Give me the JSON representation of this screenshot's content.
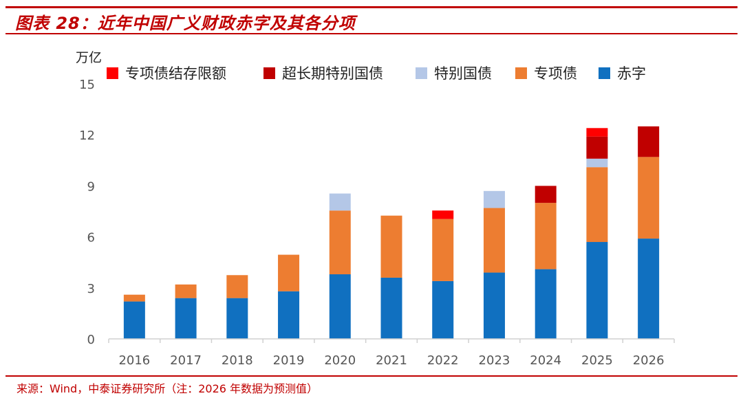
{
  "header": {
    "title": "图表 28：近年中国广义财政赤字及其各分项"
  },
  "footer": {
    "source": "来源：Wind，中泰证券研究所（注：2026 年数据为预测值）"
  },
  "chart_data": {
    "type": "bar",
    "stacked": true,
    "unit_label": "万亿",
    "categories": [
      "2016",
      "2017",
      "2018",
      "2019",
      "2020",
      "2021",
      "2022",
      "2023",
      "2024",
      "2025",
      "2026"
    ],
    "ylim": [
      0,
      15
    ],
    "yticks": [
      0,
      3,
      6,
      9,
      12,
      15
    ],
    "grid": false,
    "legend_position": "top",
    "series": [
      {
        "name": "赤字",
        "color": "#1070c0",
        "values": [
          2.2,
          2.4,
          2.4,
          2.8,
          3.8,
          3.6,
          3.4,
          3.9,
          4.1,
          5.7,
          5.9
        ]
      },
      {
        "name": "专项债",
        "color": "#ed7d31",
        "values": [
          0.4,
          0.8,
          1.35,
          2.15,
          3.75,
          3.65,
          3.65,
          3.8,
          3.9,
          4.4,
          4.8
        ]
      },
      {
        "name": "特别国债",
        "color": "#b4c7e7",
        "values": [
          0,
          0,
          0,
          0,
          1.0,
          0,
          0,
          1.0,
          0,
          0.5,
          0
        ]
      },
      {
        "name": "超长期特别国债",
        "color": "#c00000",
        "values": [
          0,
          0,
          0,
          0,
          0,
          0,
          0,
          0,
          1.0,
          1.3,
          1.8
        ]
      },
      {
        "name": "专项债结存限额",
        "color": "#ff0000",
        "values": [
          0,
          0,
          0,
          0,
          0,
          0,
          0.5,
          0,
          0,
          0.5,
          0
        ]
      }
    ],
    "legend_order": [
      "专项债结存限额",
      "超长期特别国债",
      "特别国债",
      "专项债",
      "赤字"
    ]
  }
}
